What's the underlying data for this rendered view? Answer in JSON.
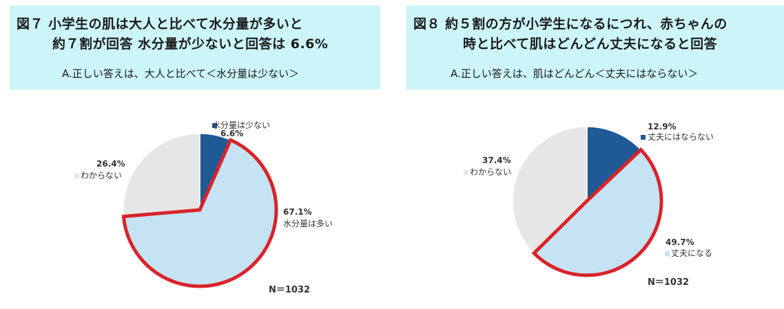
{
  "charts": [
    {
      "title_line1": "図７ 小学生の肌は大人と比べて水分量が多いと",
      "title_line2": "約７割が回答 水分量が少ないと回答は 6.6%",
      "answer": "A.正しい答えは、大人と比べて＜水分量は少ない＞",
      "n_label": "N＝1032"
    },
    {
      "title_line1": "図８ 約５割の方が小学生になるにつれ、赤ちゃんの",
      "title_line2": "時と比べて肌はどんどん丈夫になると回答",
      "answer": "A.正しい答えは、肌はどんどん＜丈夫にはならない＞",
      "n_label": "N＝1032"
    }
  ],
  "chart_data": [
    {
      "type": "pie",
      "n": "N＝1032",
      "slices": [
        {
          "label": "水分量は少ない",
          "value": 6.6,
          "value_label": "6.6%",
          "color": "#1f5a96",
          "highlight": false
        },
        {
          "label": "水分量は多い",
          "value": 67.1,
          "value_label": "67.1%",
          "color": "#c5e3f2",
          "highlight": true
        },
        {
          "label": "わからない",
          "value": 26.4,
          "value_label": "26.4%",
          "color": "#e6e6e6",
          "highlight": false
        }
      ]
    },
    {
      "type": "pie",
      "n": "N＝1032",
      "slices": [
        {
          "label": "丈夫にはならない",
          "value": 12.9,
          "value_label": "12.9%",
          "color": "#1f5a96",
          "highlight": false
        },
        {
          "label": "丈夫になる",
          "value": 49.7,
          "value_label": "49.7%",
          "color": "#c5e3f2",
          "highlight": true
        },
        {
          "label": "わからない",
          "value": 37.4,
          "value_label": "37.4%",
          "color": "#e6e6e6",
          "highlight": false
        }
      ]
    }
  ],
  "colors": {
    "header_bg": "#ccf5f9",
    "highlight_outline": "#d9232a"
  }
}
